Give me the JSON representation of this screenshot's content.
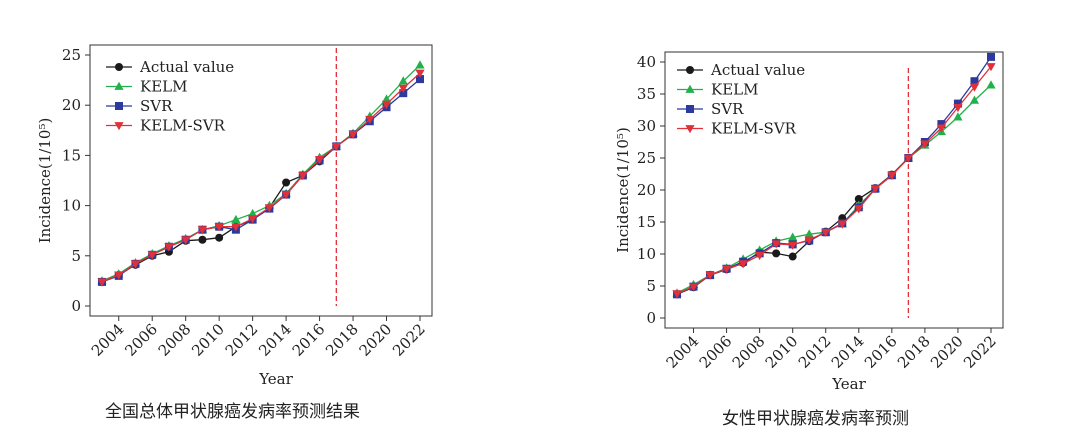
{
  "chart_data": [
    {
      "type": "line",
      "caption": "全国总体甲状腺癌发病率预测结果",
      "xlabel": "Year",
      "ylabel": "Incidence(1/10⁵)",
      "xlim": [
        2003,
        2022
      ],
      "ylim": [
        0,
        25
      ],
      "x_ticks": [
        2004,
        2006,
        2008,
        2010,
        2012,
        2014,
        2016,
        2018,
        2020,
        2022
      ],
      "y_ticks": [
        0,
        5,
        10,
        15,
        20,
        25
      ],
      "split_year": 2017,
      "legend": "top-left",
      "series": [
        {
          "name": "Actual value",
          "marker": "circle",
          "color": "#1a1a1a",
          "x": [
            2003,
            2004,
            2005,
            2006,
            2007,
            2008,
            2009,
            2010,
            2011,
            2012,
            2013,
            2014,
            2015,
            2016,
            2017
          ],
          "values": [
            2.4,
            3.1,
            4.1,
            5.0,
            5.4,
            6.5,
            6.6,
            6.8,
            7.9,
            8.6,
            9.8,
            12.3,
            13.0,
            14.4,
            15.9
          ]
        },
        {
          "name": "KELM",
          "marker": "triangle-up",
          "color": "#22b04a",
          "x": [
            2003,
            2004,
            2005,
            2006,
            2007,
            2008,
            2009,
            2010,
            2011,
            2012,
            2013,
            2014,
            2015,
            2016,
            2017,
            2018,
            2019,
            2020,
            2021,
            2022
          ],
          "values": [
            2.5,
            3.2,
            4.3,
            5.2,
            6.0,
            6.7,
            7.6,
            8.0,
            8.6,
            9.2,
            10.0,
            11.2,
            13.1,
            14.8,
            15.9,
            17.2,
            18.9,
            20.6,
            22.4,
            24.0
          ]
        },
        {
          "name": "SVR",
          "marker": "square",
          "color": "#2b3a9c",
          "x": [
            2003,
            2004,
            2005,
            2006,
            2007,
            2008,
            2009,
            2010,
            2011,
            2012,
            2013,
            2014,
            2015,
            2016,
            2017,
            2018,
            2019,
            2020,
            2021,
            2022
          ],
          "values": [
            2.4,
            3.0,
            4.2,
            5.1,
            5.9,
            6.6,
            7.6,
            7.9,
            7.6,
            8.6,
            9.7,
            11.1,
            13.0,
            14.5,
            15.9,
            17.1,
            18.4,
            19.8,
            21.2,
            22.6
          ]
        },
        {
          "name": "KELM-SVR",
          "marker": "triangle-down",
          "color": "#e0303a",
          "x": [
            2003,
            2004,
            2005,
            2006,
            2007,
            2008,
            2009,
            2010,
            2011,
            2012,
            2013,
            2014,
            2015,
            2016,
            2017,
            2018,
            2019,
            2020,
            2021,
            2022
          ],
          "values": [
            2.4,
            3.1,
            4.2,
            5.1,
            5.9,
            6.6,
            7.6,
            7.9,
            7.9,
            8.7,
            9.8,
            11.1,
            13.0,
            14.6,
            15.9,
            17.1,
            18.6,
            20.1,
            21.7,
            23.2
          ]
        }
      ]
    },
    {
      "type": "line",
      "caption": "女性甲状腺癌发病率预测",
      "xlabel": "Year",
      "ylabel": "Incidence(1/10⁵)",
      "xlim": [
        2003,
        2022
      ],
      "ylim": [
        0,
        40
      ],
      "x_ticks": [
        2004,
        2006,
        2008,
        2010,
        2012,
        2014,
        2016,
        2018,
        2020,
        2022
      ],
      "y_ticks": [
        0,
        5,
        10,
        15,
        20,
        25,
        30,
        35,
        40
      ],
      "split_year": 2017,
      "legend": "top-left",
      "series": [
        {
          "name": "Actual value",
          "marker": "circle",
          "color": "#1a1a1a",
          "x": [
            2003,
            2004,
            2005,
            2006,
            2007,
            2008,
            2009,
            2010,
            2011,
            2012,
            2013,
            2014,
            2015,
            2016,
            2017
          ],
          "values": [
            3.7,
            4.8,
            6.7,
            7.6,
            8.6,
            10.3,
            10.1,
            9.6,
            12.0,
            13.5,
            15.6,
            18.6,
            20.3,
            22.4,
            25.0
          ]
        },
        {
          "name": "KELM",
          "marker": "triangle-up",
          "color": "#22b04a",
          "x": [
            2003,
            2004,
            2005,
            2006,
            2007,
            2008,
            2009,
            2010,
            2011,
            2012,
            2013,
            2014,
            2015,
            2016,
            2017,
            2018,
            2019,
            2020,
            2021,
            2022
          ],
          "values": [
            3.9,
            5.2,
            6.7,
            7.8,
            9.2,
            10.6,
            12.0,
            12.6,
            13.1,
            13.4,
            14.7,
            17.6,
            20.2,
            22.3,
            25.0,
            27.0,
            29.1,
            31.4,
            34.0,
            36.4
          ]
        },
        {
          "name": "SVR",
          "marker": "square",
          "color": "#2b3a9c",
          "x": [
            2003,
            2004,
            2005,
            2006,
            2007,
            2008,
            2009,
            2010,
            2011,
            2012,
            2013,
            2014,
            2015,
            2016,
            2017,
            2018,
            2019,
            2020,
            2021,
            2022
          ],
          "values": [
            3.7,
            4.9,
            6.7,
            7.7,
            8.8,
            10.1,
            11.7,
            11.5,
            12.1,
            13.4,
            14.8,
            17.3,
            20.2,
            22.3,
            25.0,
            27.5,
            30.3,
            33.5,
            37.0,
            40.8
          ]
        },
        {
          "name": "KELM-SVR",
          "marker": "triangle-down",
          "color": "#e0303a",
          "x": [
            2003,
            2004,
            2005,
            2006,
            2007,
            2008,
            2009,
            2010,
            2011,
            2012,
            2013,
            2014,
            2015,
            2016,
            2017,
            2018,
            2019,
            2020,
            2021,
            2022
          ],
          "values": [
            3.8,
            4.9,
            6.7,
            7.7,
            8.5,
            9.8,
            11.6,
            11.4,
            12.2,
            13.4,
            14.7,
            17.1,
            20.2,
            22.3,
            25.0,
            27.2,
            29.7,
            32.9,
            36.1,
            39.3
          ]
        }
      ]
    }
  ]
}
